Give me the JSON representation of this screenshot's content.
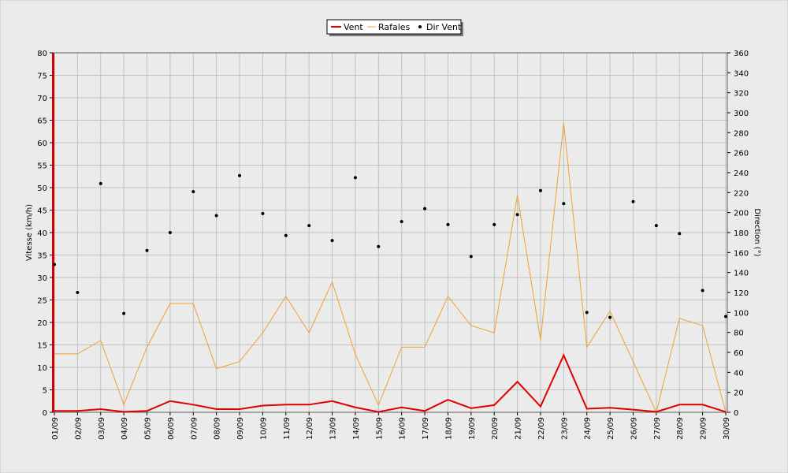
{
  "chart_data": {
    "type": "line",
    "categories": [
      "01/09",
      "02/09",
      "03/09",
      "04/09",
      "05/09",
      "06/09",
      "07/09",
      "08/09",
      "09/09",
      "10/09",
      "11/09",
      "12/09",
      "13/09",
      "14/09",
      "15/09",
      "16/09",
      "17/09",
      "18/09",
      "19/09",
      "20/09",
      "21/09",
      "22/09",
      "23/09",
      "24/09",
      "25/09",
      "26/09",
      "27/09",
      "28/09",
      "29/09",
      "30/09"
    ],
    "y_left": {
      "label": "Vitesse (km/h)",
      "range": [
        0,
        80
      ],
      "step": 5
    },
    "y_right": {
      "label": "Direction (°)",
      "range": [
        0,
        360
      ],
      "step": 20
    },
    "grid": true,
    "legend_position": "top-center",
    "series": [
      {
        "name": "Vent",
        "axis": "left",
        "style": "line",
        "color": "#e00000",
        "values": [
          0.3,
          0.3,
          0.7,
          0.1,
          0.3,
          2.5,
          1.7,
          0.7,
          0.7,
          1.5,
          1.7,
          1.7,
          2.5,
          1.1,
          0.1,
          1.1,
          0.3,
          2.8,
          0.9,
          1.6,
          6.8,
          1.3,
          12.7,
          0.8,
          1.0,
          0.6,
          0.1,
          1.7,
          1.7,
          0.1
        ]
      },
      {
        "name": "Rafales",
        "axis": "left",
        "style": "line",
        "color": "#f0a030",
        "values": [
          13,
          13,
          16,
          1.7,
          14.5,
          24.2,
          24.2,
          9.7,
          11.3,
          17.7,
          25.8,
          17.7,
          29,
          12.9,
          1.6,
          14.5,
          14.5,
          25.8,
          19.3,
          17.7,
          48.3,
          16.1,
          64.4,
          14.5,
          22.5,
          11.3,
          0,
          20.9,
          19.3,
          0
        ]
      },
      {
        "name": "Dir Vent",
        "axis": "right",
        "style": "points",
        "color": "#000000",
        "values": [
          148,
          120,
          229,
          99,
          162,
          180,
          221,
          197,
          237,
          199,
          177,
          187,
          172,
          235,
          166,
          191,
          204,
          188,
          156,
          188,
          198,
          222,
          209,
          100,
          95,
          211,
          187,
          179,
          122,
          96
        ]
      }
    ]
  }
}
